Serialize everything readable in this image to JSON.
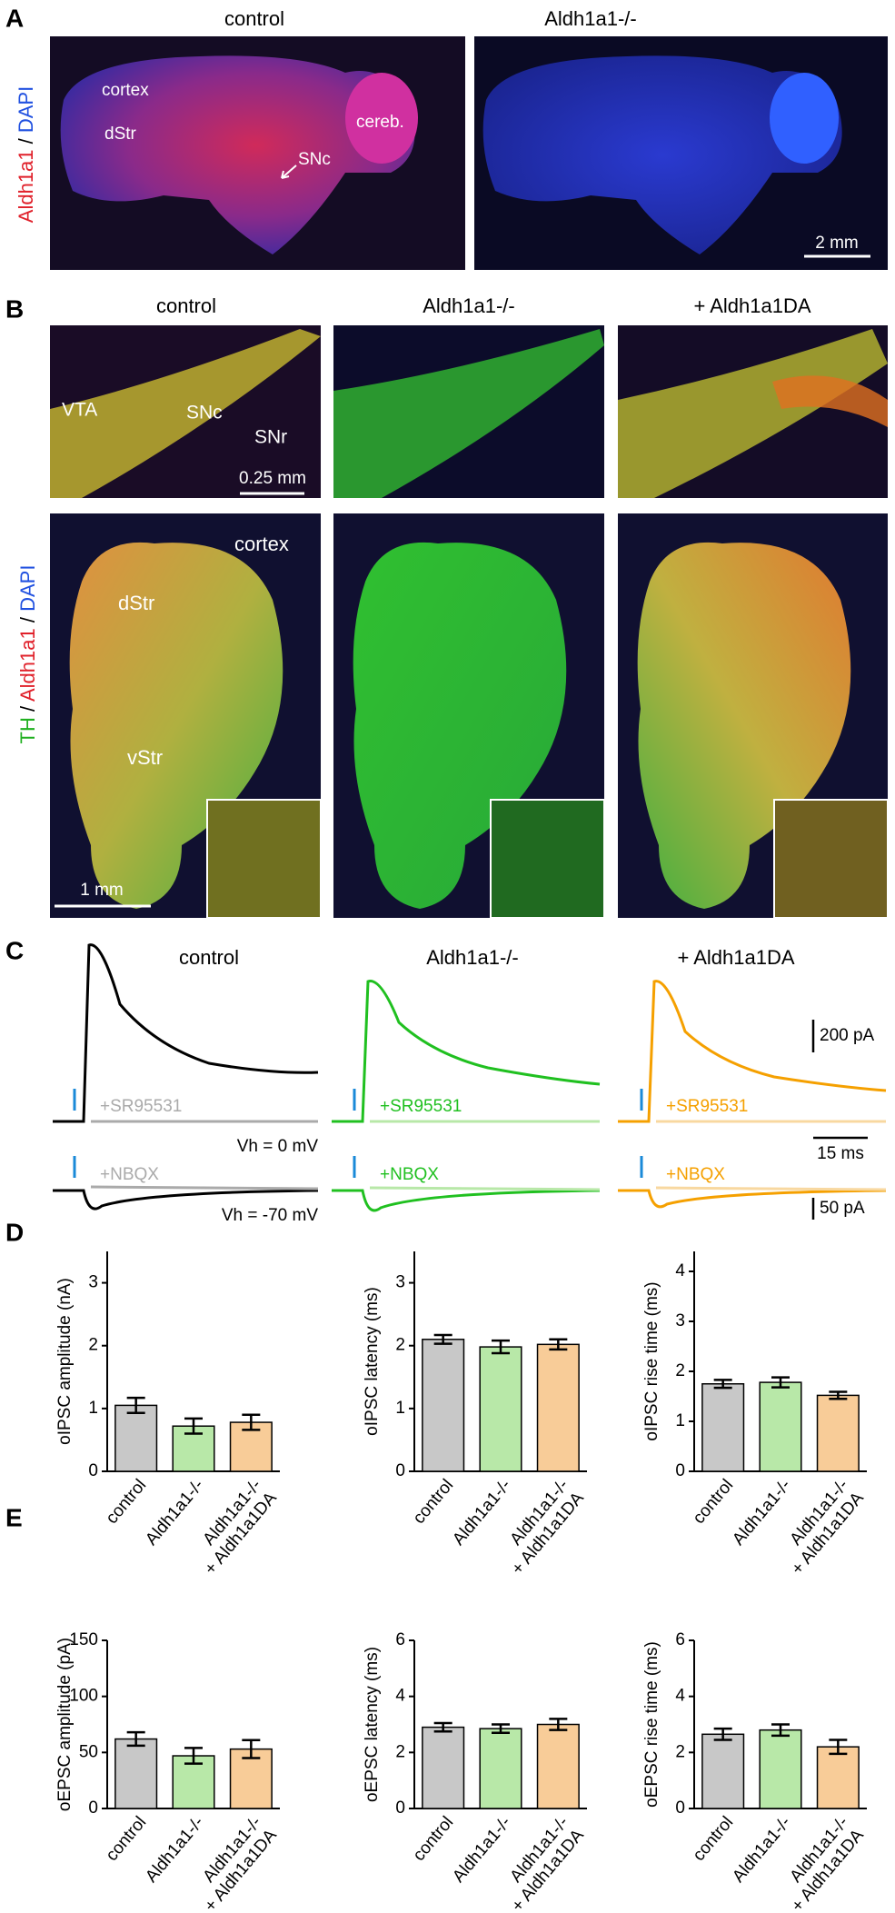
{
  "panel_a": {
    "label": "A",
    "titles": [
      "control",
      "Aldh1a1-/-"
    ],
    "stain": [
      "Aldh1a1",
      " / ",
      "DAPI"
    ],
    "annotations": [
      "cortex",
      "dStr",
      "cereb.",
      "SNc"
    ],
    "scale": "2 mm"
  },
  "panel_b": {
    "label": "B",
    "titles": [
      "control",
      "Aldh1a1-/-",
      "+ Aldh1a1DA"
    ],
    "stain": [
      "TH",
      " / ",
      "Aldh1a1",
      " / ",
      "DAPI"
    ],
    "annotations_top": [
      "VTA",
      "SNc",
      "SNr"
    ],
    "scale_top": "0.25 mm",
    "annotations_bottom": [
      "cortex",
      "dStr",
      "vStr"
    ],
    "scale_bottom": "1 mm"
  },
  "panel_c": {
    "label": "C",
    "titles": [
      "control",
      "Aldh1a1-/-",
      "+ Aldh1a1DA"
    ],
    "drugs_top": [
      "+SR95531",
      "+SR95531",
      "+SR95531"
    ],
    "drugs_bottom": [
      "+NBQX",
      "+NBQX",
      "+NBQX"
    ],
    "holding": [
      "Vh = 0 mV",
      "Vh = -70 mV"
    ],
    "scales": [
      "200 pA",
      "15 ms",
      "50 pA"
    ]
  },
  "panel_d": {
    "label": "D"
  },
  "panel_e": {
    "label": "E"
  },
  "chart_data": [
    {
      "type": "bar",
      "ylabel": "oIPSC amplitude (nA)",
      "categories": [
        "control",
        "Aldh1a1-/-",
        [
          "Aldh1a1-/-",
          "+ Aldh1a1DA"
        ]
      ],
      "values": [
        1.05,
        0.72,
        0.78
      ],
      "errors": [
        0.12,
        0.12,
        0.12
      ],
      "colors": [
        "#c8c8c8",
        "#b8e8a8",
        "#f8cc98"
      ],
      "ylim": [
        0,
        3.5
      ],
      "yticks": [
        0,
        1,
        2,
        3
      ]
    },
    {
      "type": "bar",
      "ylabel": "oIPSC latency (ms)",
      "categories": [
        "control",
        "Aldh1a1-/-",
        [
          "Aldh1a1-/-",
          "+ Aldh1a1DA"
        ]
      ],
      "values": [
        2.1,
        1.98,
        2.02
      ],
      "errors": [
        0.07,
        0.1,
        0.08
      ],
      "colors": [
        "#c8c8c8",
        "#b8e8a8",
        "#f8cc98"
      ],
      "ylim": [
        0,
        3.5
      ],
      "yticks": [
        0,
        1,
        2,
        3
      ]
    },
    {
      "type": "bar",
      "ylabel": "oIPSC rise time (ms)",
      "categories": [
        "control",
        "Aldh1a1-/-",
        [
          "Aldh1a1-/-",
          "+ Aldh1a1DA"
        ]
      ],
      "values": [
        1.75,
        1.78,
        1.52
      ],
      "errors": [
        0.08,
        0.1,
        0.07
      ],
      "colors": [
        "#c8c8c8",
        "#b8e8a8",
        "#f8cc98"
      ],
      "ylim": [
        0,
        4.4
      ],
      "yticks": [
        0,
        1,
        2,
        3,
        4
      ]
    },
    {
      "type": "bar",
      "ylabel": "oEPSC amplitude (pA)",
      "categories": [
        "control",
        "Aldh1a1-/-",
        [
          "Aldh1a1-/-",
          "+ Aldh1a1DA"
        ]
      ],
      "values": [
        62,
        47,
        53
      ],
      "errors": [
        6,
        7,
        8
      ],
      "colors": [
        "#c8c8c8",
        "#b8e8a8",
        "#f8cc98"
      ],
      "ylim": [
        0,
        150
      ],
      "yticks": [
        0,
        50,
        100,
        150
      ]
    },
    {
      "type": "bar",
      "ylabel": "oEPSC latency (ms)",
      "categories": [
        "control",
        "Aldh1a1-/-",
        [
          "Aldh1a1-/-",
          "+ Aldh1a1DA"
        ]
      ],
      "values": [
        2.9,
        2.85,
        3.0
      ],
      "errors": [
        0.15,
        0.15,
        0.2
      ],
      "colors": [
        "#c8c8c8",
        "#b8e8a8",
        "#f8cc98"
      ],
      "ylim": [
        0,
        6
      ],
      "yticks": [
        0,
        2,
        4,
        6
      ]
    },
    {
      "type": "bar",
      "ylabel": "oEPSC rise time (ms)",
      "categories": [
        "control",
        "Aldh1a1-/-",
        [
          "Aldh1a1-/-",
          "+ Aldh1a1DA"
        ]
      ],
      "values": [
        2.65,
        2.8,
        2.2
      ],
      "errors": [
        0.2,
        0.2,
        0.25
      ],
      "colors": [
        "#c8c8c8",
        "#b8e8a8",
        "#f8cc98"
      ],
      "ylim": [
        0,
        6
      ],
      "yticks": [
        0,
        2,
        4,
        6
      ]
    }
  ]
}
